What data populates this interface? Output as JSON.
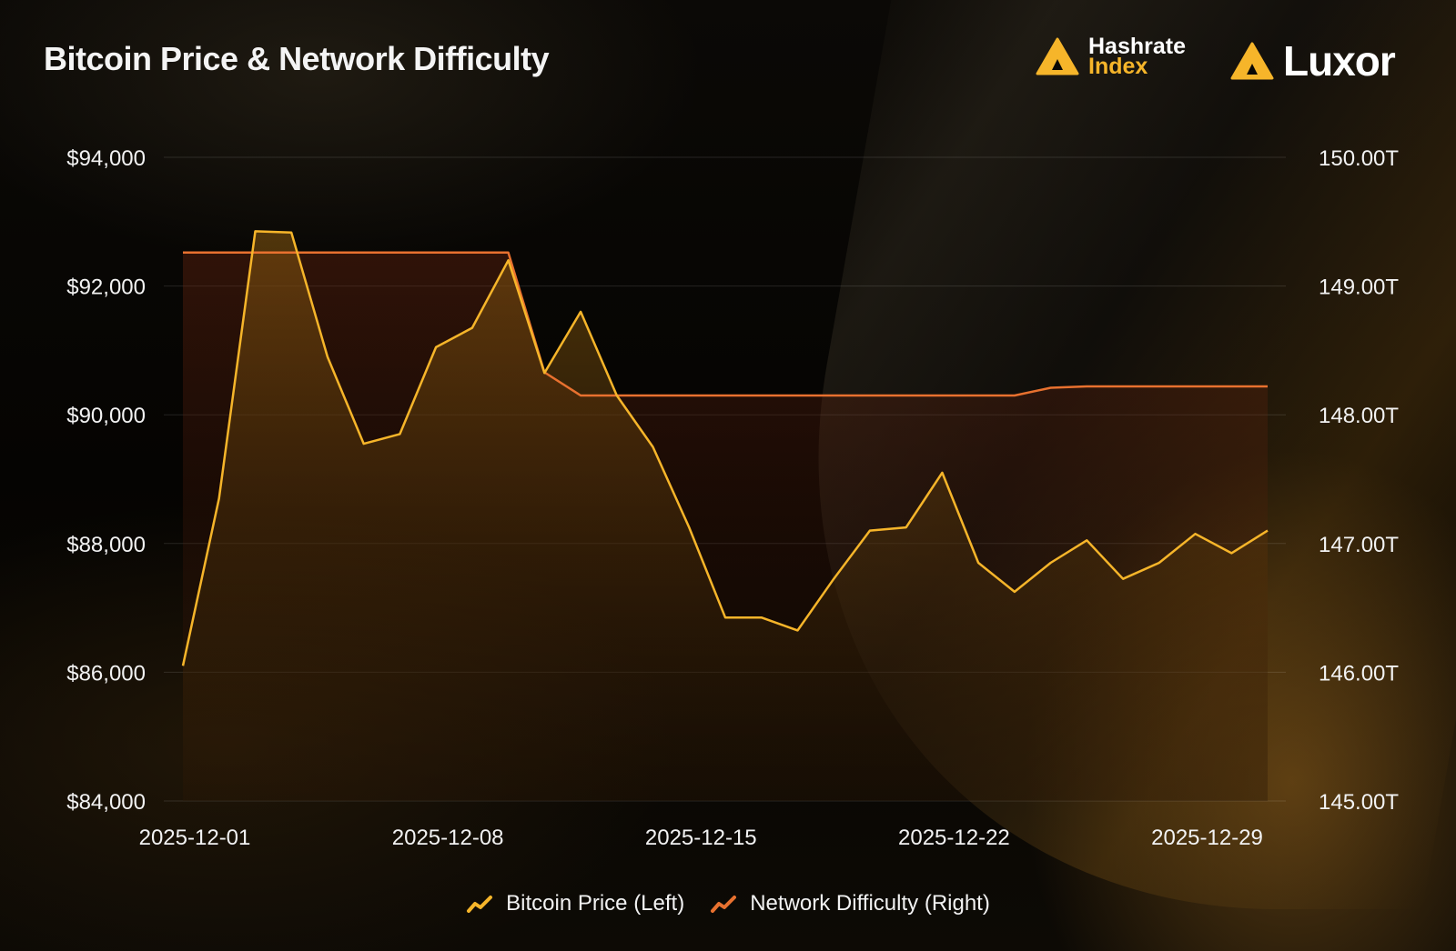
{
  "header": {
    "title": "Bitcoin Price & Network Difficulty"
  },
  "brands": {
    "hashrate_line1": "Hashrate",
    "hashrate_line2": "Index",
    "luxor": "Luxor",
    "accent_color": "#f6b52a"
  },
  "legend": {
    "price_label": "Bitcoin Price (Left)",
    "difficulty_label": "Network Difficulty (Right)"
  },
  "chart_data": {
    "type": "line",
    "title": "Bitcoin Price & Network Difficulty",
    "x_ticks": [
      "2025-12-01",
      "2025-12-08",
      "2025-12-15",
      "2025-12-22",
      "2025-12-29"
    ],
    "x_dates": [
      "2025-12-01",
      "2025-12-02",
      "2025-12-03",
      "2025-12-04",
      "2025-12-05",
      "2025-12-06",
      "2025-12-07",
      "2025-12-08",
      "2025-12-09",
      "2025-12-10",
      "2025-12-11",
      "2025-12-12",
      "2025-12-13",
      "2025-12-14",
      "2025-12-15",
      "2025-12-16",
      "2025-12-17",
      "2025-12-18",
      "2025-12-19",
      "2025-12-20",
      "2025-12-21",
      "2025-12-22",
      "2025-12-23",
      "2025-12-24",
      "2025-12-25",
      "2025-12-26",
      "2025-12-27",
      "2025-12-28",
      "2025-12-29",
      "2025-12-30",
      "2025-12-31"
    ],
    "left_axis": {
      "ticks": [
        "$94,000",
        "$92,000",
        "$90,000",
        "$88,000",
        "$86,000",
        "$84,000"
      ],
      "ylim": [
        84000,
        94000
      ]
    },
    "right_axis": {
      "ticks": [
        "150.00T",
        "149.00T",
        "148.00T",
        "147.00T",
        "146.00T",
        "145.00T"
      ],
      "ylim": [
        145,
        150
      ]
    },
    "series": [
      {
        "name": "Bitcoin Price (Left)",
        "axis": "left",
        "color": "#f6b52a",
        "values": [
          86100,
          88700,
          92850,
          92830,
          90900,
          89550,
          89700,
          91050,
          91350,
          92400,
          90650,
          91600,
          90300,
          89500,
          88250,
          86850,
          86850,
          86650,
          87450,
          88200,
          88250,
          89100,
          87700,
          87250,
          87700,
          88050,
          87450,
          87700,
          88150,
          87850,
          88200
        ]
      },
      {
        "name": "Network Difficulty (Right)",
        "axis": "right",
        "color": "#e8712f",
        "values": [
          149.26,
          149.26,
          149.26,
          149.26,
          149.26,
          149.26,
          149.26,
          149.26,
          149.26,
          149.26,
          148.33,
          148.15,
          148.15,
          148.15,
          148.15,
          148.15,
          148.15,
          148.15,
          148.15,
          148.15,
          148.15,
          148.15,
          148.15,
          148.15,
          148.21,
          148.22,
          148.22,
          148.22,
          148.22,
          148.22,
          148.22
        ]
      }
    ]
  }
}
